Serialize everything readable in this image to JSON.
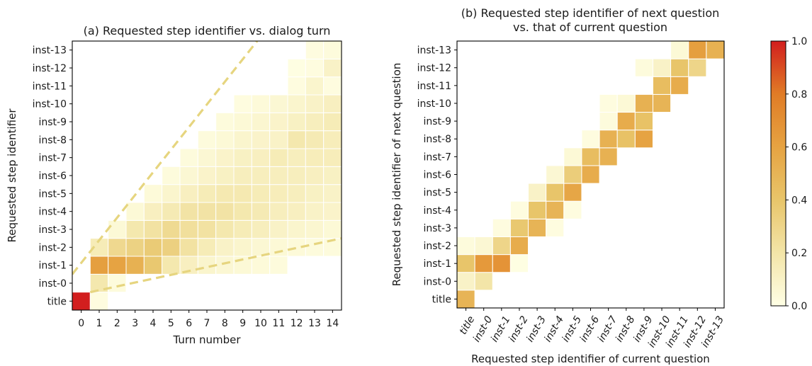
{
  "chart_data": [
    {
      "type": "heatmap",
      "title": "(a) Requested step identifier vs. dialog turn",
      "xlabel": "Turn number",
      "ylabel": "Requested step identifier",
      "x_categories": [
        "0",
        "1",
        "2",
        "3",
        "4",
        "5",
        "6",
        "7",
        "8",
        "9",
        "10",
        "11",
        "12",
        "13",
        "14"
      ],
      "y_categories": [
        "title",
        "inst-0",
        "inst-1",
        "inst-2",
        "inst-3",
        "inst-4",
        "inst-5",
        "inst-6",
        "inst-7",
        "inst-8",
        "inst-9",
        "inst-10",
        "inst-11",
        "inst-12",
        "inst-13"
      ],
      "values": [
        [
          1.0,
          0.02,
          0,
          0,
          0,
          0,
          0,
          0,
          0,
          0,
          0,
          0,
          0,
          0,
          0
        ],
        [
          0,
          0.18,
          0.03,
          0,
          0,
          0,
          0,
          0,
          0,
          0,
          0,
          0,
          0,
          0,
          0
        ],
        [
          0,
          0.62,
          0.6,
          0.52,
          0.38,
          0.18,
          0.12,
          0.08,
          0.06,
          0.05,
          0.04,
          0.03,
          0,
          0,
          0
        ],
        [
          0,
          0.15,
          0.28,
          0.32,
          0.36,
          0.33,
          0.22,
          0.15,
          0.1,
          0.08,
          0.06,
          0.05,
          0.04,
          0.03,
          0.03
        ],
        [
          0,
          0,
          0.05,
          0.18,
          0.22,
          0.27,
          0.24,
          0.22,
          0.18,
          0.15,
          0.13,
          0.1,
          0.08,
          0.07,
          0.05
        ],
        [
          0,
          0,
          0,
          0.05,
          0.12,
          0.16,
          0.21,
          0.21,
          0.21,
          0.18,
          0.16,
          0.13,
          0.12,
          0.1,
          0.09
        ],
        [
          0,
          0,
          0,
          0,
          0.04,
          0.08,
          0.12,
          0.15,
          0.17,
          0.17,
          0.15,
          0.14,
          0.13,
          0.11,
          0.1
        ],
        [
          0,
          0,
          0,
          0,
          0,
          0.03,
          0.06,
          0.09,
          0.11,
          0.13,
          0.13,
          0.13,
          0.13,
          0.12,
          0.11
        ],
        [
          0,
          0,
          0,
          0,
          0,
          0,
          0.03,
          0.06,
          0.09,
          0.11,
          0.12,
          0.15,
          0.13,
          0.14,
          0.14
        ],
        [
          0,
          0,
          0,
          0,
          0,
          0,
          0,
          0.03,
          0.05,
          0.08,
          0.09,
          0.1,
          0.18,
          0.16,
          0.14
        ],
        [
          0,
          0,
          0,
          0,
          0,
          0,
          0,
          0,
          0.03,
          0.05,
          0.07,
          0.09,
          0.11,
          0.13,
          0.15
        ],
        [
          0,
          0,
          0,
          0,
          0,
          0,
          0,
          0,
          0,
          0.02,
          0.04,
          0.06,
          0.08,
          0.1,
          0.12
        ],
        [
          0,
          0,
          0,
          0,
          0,
          0,
          0,
          0,
          0,
          0,
          0,
          0,
          0.02,
          0.08,
          0.02
        ],
        [
          0,
          0,
          0,
          0,
          0,
          0,
          0,
          0,
          0,
          0,
          0,
          0,
          0.01,
          0.02,
          0.1
        ],
        [
          0,
          0,
          0,
          0,
          0,
          0,
          0,
          0,
          0,
          0,
          0,
          0,
          0,
          0.02,
          0.03
        ]
      ],
      "guide_lines": [
        {
          "from": [
            0.5,
            0.5
          ],
          "to": [
            14.5,
            3.5
          ]
        },
        {
          "from": [
            -0.5,
            1.5
          ],
          "to": [
            9.8,
            14.5
          ]
        }
      ],
      "guide_color": "#e6d57f"
    },
    {
      "type": "heatmap",
      "title": "(b) Requested step identifier of next question\nvs. that of current question",
      "xlabel": "Requested step identifier of current question",
      "ylabel": "Requested step identifier of next question",
      "x_categories": [
        "title",
        "inst-0",
        "inst-1",
        "inst-2",
        "inst-3",
        "inst-4",
        "inst-5",
        "inst-6",
        "inst-7",
        "inst-8",
        "inst-9",
        "inst-10",
        "inst-11",
        "inst-12",
        "inst-13"
      ],
      "y_categories": [
        "title",
        "inst-0",
        "inst-1",
        "inst-2",
        "inst-3",
        "inst-4",
        "inst-5",
        "inst-6",
        "inst-7",
        "inst-8",
        "inst-9",
        "inst-10",
        "inst-11",
        "inst-12",
        "inst-13"
      ],
      "values": [
        [
          0.5,
          0,
          0,
          0,
          0,
          0,
          0,
          0,
          0,
          0,
          0,
          0,
          0,
          0,
          0
        ],
        [
          0.1,
          0.2,
          0,
          0,
          0,
          0,
          0,
          0,
          0,
          0,
          0,
          0,
          0,
          0,
          0
        ],
        [
          0.4,
          0.65,
          0.68,
          0.01,
          0,
          0,
          0,
          0,
          0,
          0,
          0,
          0,
          0,
          0,
          0
        ],
        [
          0.03,
          0.06,
          0.3,
          0.55,
          0,
          0,
          0,
          0,
          0,
          0,
          0,
          0,
          0,
          0,
          0
        ],
        [
          0,
          0,
          0.02,
          0.38,
          0.5,
          0.02,
          0,
          0,
          0,
          0,
          0,
          0,
          0,
          0,
          0
        ],
        [
          0,
          0,
          0,
          0.02,
          0.4,
          0.5,
          0.02,
          0,
          0,
          0,
          0,
          0,
          0,
          0,
          0
        ],
        [
          0,
          0,
          0,
          0,
          0.1,
          0.4,
          0.58,
          0,
          0,
          0,
          0,
          0,
          0,
          0,
          0
        ],
        [
          0,
          0,
          0,
          0,
          0,
          0.06,
          0.35,
          0.55,
          0,
          0,
          0,
          0,
          0,
          0,
          0
        ],
        [
          0,
          0,
          0,
          0,
          0,
          0,
          0.05,
          0.45,
          0.52,
          0,
          0,
          0,
          0,
          0,
          0
        ],
        [
          0,
          0,
          0,
          0,
          0,
          0,
          0,
          0.02,
          0.52,
          0.42,
          0.6,
          0,
          0,
          0,
          0
        ],
        [
          0,
          0,
          0,
          0,
          0,
          0,
          0,
          0,
          0.03,
          0.55,
          0.42,
          0,
          0,
          0,
          0
        ],
        [
          0,
          0,
          0,
          0,
          0,
          0,
          0,
          0,
          0.02,
          0.05,
          0.52,
          0.5,
          0,
          0,
          0
        ],
        [
          0,
          0,
          0,
          0,
          0,
          0,
          0,
          0,
          0,
          0,
          0,
          0.45,
          0.55,
          0,
          0
        ],
        [
          0,
          0,
          0,
          0,
          0,
          0,
          0,
          0,
          0,
          0,
          0.03,
          0.1,
          0.4,
          0.3,
          0
        ],
        [
          0,
          0,
          0,
          0,
          0,
          0,
          0,
          0,
          0,
          0,
          0,
          0,
          0.05,
          0.62,
          0.52
        ]
      ]
    }
  ],
  "colorbar": {
    "vmin": 0.0,
    "vmax": 1.0,
    "ticks": [
      0.0,
      0.2,
      0.4,
      0.6,
      0.8,
      1.0
    ],
    "tick_labels": [
      "0.0",
      "0.2",
      "0.4",
      "0.6",
      "0.8",
      "1.0"
    ],
    "colormap": [
      "#ffffe5",
      "#f3e5a8",
      "#e8c56a",
      "#e6a342",
      "#e07c26",
      "#d21e1e"
    ]
  }
}
